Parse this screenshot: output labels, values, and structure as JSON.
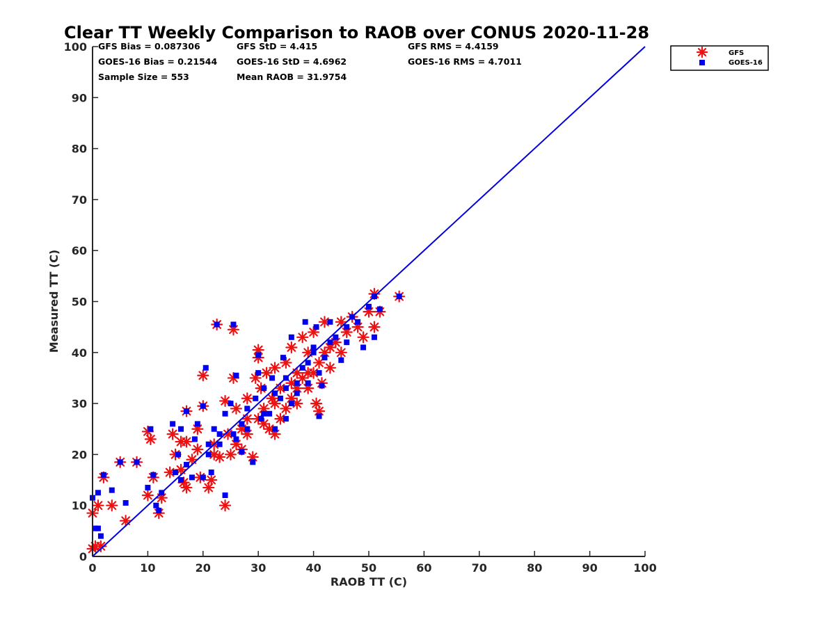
{
  "chart_data": {
    "type": "scatter",
    "title": "Clear TT Weekly Comparison to RAOB over CONUS 2020-11-28",
    "xlabel": "RAOB TT (C)",
    "ylabel": "Measured TT (C)",
    "xlim": [
      0,
      100
    ],
    "ylim": [
      0,
      100
    ],
    "xticks": [
      "0",
      "10",
      "20",
      "30",
      "40",
      "50",
      "60",
      "70",
      "80",
      "90",
      "100"
    ],
    "yticks": [
      "0",
      "10",
      "20",
      "30",
      "40",
      "50",
      "60",
      "70",
      "80",
      "90",
      "100"
    ],
    "grid": false,
    "legend_position": "top-right outside",
    "stats": {
      "gfs_bias": "GFS Bias = 0.087306",
      "gfs_std": "GFS StD = 4.415",
      "gfs_rms": "GFS RMS = 4.4159",
      "goes_bias": "GOES-16 Bias = 0.21544",
      "goes_std": "GOES-16 StD = 4.6962",
      "goes_rms": "GOES-16 RMS = 4.7011",
      "sample_size": "Sample Size = 553",
      "mean_raob": "Mean RAOB = 31.9754"
    },
    "reference_line": {
      "name": "1:1",
      "x": [
        0,
        100
      ],
      "y": [
        0,
        100
      ],
      "color": "#0000dd"
    },
    "series": [
      {
        "name": "GFS",
        "marker": "asterisk",
        "color": "#ee1111",
        "points": [
          [
            0,
            1.5
          ],
          [
            0,
            8.5
          ],
          [
            0.5,
            2
          ],
          [
            1,
            10
          ],
          [
            1.5,
            2
          ],
          [
            2,
            15.5
          ],
          [
            3.5,
            10
          ],
          [
            5,
            18.5
          ],
          [
            6,
            7
          ],
          [
            8,
            18.5
          ],
          [
            10,
            12
          ],
          [
            10,
            24.5
          ],
          [
            10.5,
            23
          ],
          [
            11,
            15.5
          ],
          [
            12,
            8.5
          ],
          [
            12.5,
            11.5
          ],
          [
            14,
            16.5
          ],
          [
            14.5,
            24
          ],
          [
            15,
            20
          ],
          [
            16,
            17
          ],
          [
            16,
            22.5
          ],
          [
            16.5,
            14.5
          ],
          [
            17,
            13.5
          ],
          [
            17,
            28.5
          ],
          [
            17,
            22.5
          ],
          [
            18,
            19
          ],
          [
            19,
            25
          ],
          [
            19.5,
            15.5
          ],
          [
            20,
            29.5
          ],
          [
            20,
            35.5
          ],
          [
            21,
            13.5
          ],
          [
            21.5,
            15
          ],
          [
            22,
            20
          ],
          [
            22.5,
            45.5
          ],
          [
            23,
            19.5
          ],
          [
            24,
            10
          ],
          [
            24,
            30.5
          ],
          [
            24.5,
            24
          ],
          [
            25,
            20
          ],
          [
            25.5,
            35
          ],
          [
            25.5,
            44.5
          ],
          [
            26,
            29
          ],
          [
            27,
            21
          ],
          [
            27,
            25
          ],
          [
            28,
            27
          ],
          [
            28,
            31
          ],
          [
            29,
            19.5
          ],
          [
            29.5,
            35
          ],
          [
            30,
            40.5
          ],
          [
            30,
            39
          ],
          [
            30.5,
            33
          ],
          [
            31,
            29
          ],
          [
            31.5,
            36
          ],
          [
            32,
            25
          ],
          [
            32.5,
            31
          ],
          [
            33,
            24
          ],
          [
            33,
            37
          ],
          [
            34,
            27
          ],
          [
            34,
            33
          ],
          [
            35,
            29
          ],
          [
            35,
            38
          ],
          [
            36,
            34
          ],
          [
            36,
            41
          ],
          [
            37,
            30
          ],
          [
            37,
            36
          ],
          [
            38,
            35
          ],
          [
            38,
            43
          ],
          [
            39,
            33
          ],
          [
            39,
            40
          ],
          [
            40,
            36
          ],
          [
            40,
            44
          ],
          [
            40.5,
            30
          ],
          [
            41,
            28.5
          ],
          [
            41,
            38
          ],
          [
            41.5,
            34
          ],
          [
            42,
            40
          ],
          [
            42,
            46
          ],
          [
            43,
            37
          ],
          [
            44,
            42
          ],
          [
            45,
            40
          ],
          [
            45,
            46
          ],
          [
            46,
            44
          ],
          [
            47,
            47
          ],
          [
            48,
            45
          ],
          [
            49,
            43
          ],
          [
            50,
            48
          ],
          [
            51,
            45
          ],
          [
            51,
            51.5
          ],
          [
            52,
            48
          ],
          [
            55.5,
            51
          ],
          [
            26,
            22
          ],
          [
            31,
            26
          ],
          [
            33,
            30
          ],
          [
            37,
            33
          ],
          [
            39,
            36
          ],
          [
            43,
            41
          ],
          [
            36,
            31
          ],
          [
            30,
            27
          ],
          [
            28,
            24
          ],
          [
            22,
            22
          ],
          [
            19,
            21
          ]
        ]
      },
      {
        "name": "GOES-16",
        "marker": "square",
        "color": "#0000ee",
        "points": [
          [
            0,
            11.5
          ],
          [
            0.5,
            5.5
          ],
          [
            1,
            12.5
          ],
          [
            1,
            5.5
          ],
          [
            1.5,
            4
          ],
          [
            2,
            16
          ],
          [
            3.5,
            13
          ],
          [
            5,
            18.5
          ],
          [
            6,
            10.5
          ],
          [
            8,
            18.5
          ],
          [
            10,
            13.5
          ],
          [
            10.5,
            25
          ],
          [
            11,
            16
          ],
          [
            11.5,
            10
          ],
          [
            12,
            9
          ],
          [
            12.5,
            12.5
          ],
          [
            14.5,
            26
          ],
          [
            15,
            16.5
          ],
          [
            15.5,
            20
          ],
          [
            16,
            15
          ],
          [
            16,
            25
          ],
          [
            17,
            28.5
          ],
          [
            17,
            18
          ],
          [
            18,
            15.5
          ],
          [
            18.5,
            23
          ],
          [
            19,
            26
          ],
          [
            20,
            15.5
          ],
          [
            20,
            29.5
          ],
          [
            20.5,
            37
          ],
          [
            21,
            20
          ],
          [
            21.5,
            16.5
          ],
          [
            22,
            25
          ],
          [
            22.5,
            45.5
          ],
          [
            23,
            22
          ],
          [
            24,
            12
          ],
          [
            24,
            28
          ],
          [
            25,
            30
          ],
          [
            25.5,
            24
          ],
          [
            25.5,
            45.5
          ],
          [
            26,
            35.5
          ],
          [
            27,
            20.5
          ],
          [
            27,
            26
          ],
          [
            28,
            29
          ],
          [
            29,
            18.5
          ],
          [
            29.5,
            31
          ],
          [
            30,
            39.5
          ],
          [
            30,
            36
          ],
          [
            30.5,
            27
          ],
          [
            31,
            33
          ],
          [
            32,
            28
          ],
          [
            32.5,
            35
          ],
          [
            33,
            25
          ],
          [
            34,
            31
          ],
          [
            34.5,
            39
          ],
          [
            35,
            27
          ],
          [
            35,
            35
          ],
          [
            36,
            30
          ],
          [
            36,
            43
          ],
          [
            37,
            32
          ],
          [
            38,
            37
          ],
          [
            38.5,
            46
          ],
          [
            39,
            34
          ],
          [
            40,
            40
          ],
          [
            40.5,
            45
          ],
          [
            41,
            27.5
          ],
          [
            41,
            36
          ],
          [
            41.5,
            33.5
          ],
          [
            42,
            39
          ],
          [
            43,
            46
          ],
          [
            44,
            43
          ],
          [
            45,
            38.5
          ],
          [
            46,
            45
          ],
          [
            47,
            47
          ],
          [
            48,
            46
          ],
          [
            49,
            41
          ],
          [
            50,
            49
          ],
          [
            51,
            43
          ],
          [
            51,
            51
          ],
          [
            52,
            48.5
          ],
          [
            55.5,
            51
          ],
          [
            26,
            23
          ],
          [
            28,
            25
          ],
          [
            31,
            28
          ],
          [
            33,
            32
          ],
          [
            37,
            34
          ],
          [
            39,
            38
          ],
          [
            43,
            42
          ],
          [
            21,
            22
          ],
          [
            23,
            24
          ],
          [
            35,
            33
          ],
          [
            40,
            41
          ],
          [
            46,
            42
          ]
        ]
      }
    ]
  }
}
